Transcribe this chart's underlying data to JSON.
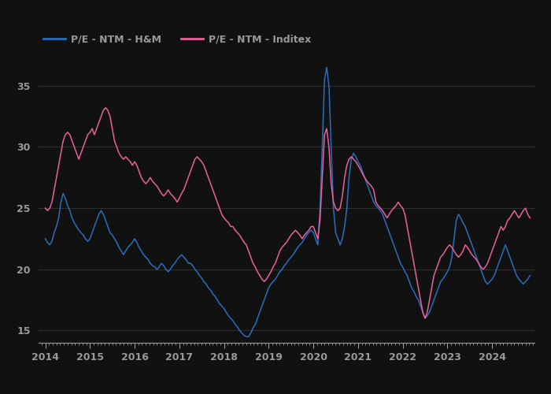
{
  "hm_color": "#2a6ebb",
  "inditex_color": "#e8619a",
  "background_color": "#111111",
  "plot_bg_color": "#111111",
  "text_color": "#999999",
  "grid_color": "#2e2e2e",
  "ylim": [
    14.0,
    37.5
  ],
  "yticks": [
    15,
    20,
    25,
    30,
    35
  ],
  "xlim": [
    2013.85,
    2024.95
  ],
  "xtick_years": [
    2014,
    2015,
    2016,
    2017,
    2018,
    2019,
    2020,
    2021,
    2022,
    2023,
    2024
  ],
  "legend_labels": [
    "P/E - NTM - H&M",
    "P/E - NTM - Inditex"
  ],
  "hm_data": [
    [
      2014.0,
      22.5
    ],
    [
      2014.05,
      22.2
    ],
    [
      2014.1,
      22.0
    ],
    [
      2014.15,
      22.3
    ],
    [
      2014.2,
      23.0
    ],
    [
      2014.25,
      23.5
    ],
    [
      2014.3,
      24.2
    ],
    [
      2014.35,
      25.5
    ],
    [
      2014.4,
      26.2
    ],
    [
      2014.45,
      25.8
    ],
    [
      2014.5,
      25.2
    ],
    [
      2014.55,
      24.8
    ],
    [
      2014.6,
      24.2
    ],
    [
      2014.65,
      23.8
    ],
    [
      2014.7,
      23.5
    ],
    [
      2014.75,
      23.2
    ],
    [
      2014.8,
      23.0
    ],
    [
      2014.85,
      22.8
    ],
    [
      2014.9,
      22.5
    ],
    [
      2014.95,
      22.3
    ],
    [
      2015.0,
      22.5
    ],
    [
      2015.05,
      23.0
    ],
    [
      2015.1,
      23.5
    ],
    [
      2015.15,
      24.0
    ],
    [
      2015.2,
      24.5
    ],
    [
      2015.25,
      24.8
    ],
    [
      2015.3,
      24.5
    ],
    [
      2015.35,
      24.0
    ],
    [
      2015.4,
      23.5
    ],
    [
      2015.45,
      23.0
    ],
    [
      2015.5,
      22.8
    ],
    [
      2015.55,
      22.5
    ],
    [
      2015.6,
      22.2
    ],
    [
      2015.65,
      21.8
    ],
    [
      2015.7,
      21.5
    ],
    [
      2015.75,
      21.2
    ],
    [
      2015.8,
      21.5
    ],
    [
      2015.85,
      21.8
    ],
    [
      2015.9,
      22.0
    ],
    [
      2015.95,
      22.2
    ],
    [
      2016.0,
      22.5
    ],
    [
      2016.05,
      22.2
    ],
    [
      2016.1,
      21.8
    ],
    [
      2016.15,
      21.5
    ],
    [
      2016.2,
      21.2
    ],
    [
      2016.25,
      21.0
    ],
    [
      2016.3,
      20.8
    ],
    [
      2016.35,
      20.5
    ],
    [
      2016.4,
      20.3
    ],
    [
      2016.45,
      20.2
    ],
    [
      2016.5,
      20.0
    ],
    [
      2016.55,
      20.2
    ],
    [
      2016.6,
      20.5
    ],
    [
      2016.65,
      20.3
    ],
    [
      2016.7,
      20.0
    ],
    [
      2016.75,
      19.8
    ],
    [
      2016.8,
      20.0
    ],
    [
      2016.85,
      20.3
    ],
    [
      2016.9,
      20.5
    ],
    [
      2016.95,
      20.8
    ],
    [
      2017.0,
      21.0
    ],
    [
      2017.05,
      21.2
    ],
    [
      2017.1,
      21.0
    ],
    [
      2017.15,
      20.8
    ],
    [
      2017.2,
      20.5
    ],
    [
      2017.25,
      20.5
    ],
    [
      2017.3,
      20.3
    ],
    [
      2017.35,
      20.0
    ],
    [
      2017.4,
      19.8
    ],
    [
      2017.45,
      19.5
    ],
    [
      2017.5,
      19.3
    ],
    [
      2017.55,
      19.0
    ],
    [
      2017.6,
      18.8
    ],
    [
      2017.65,
      18.5
    ],
    [
      2017.7,
      18.3
    ],
    [
      2017.75,
      18.0
    ],
    [
      2017.8,
      17.8
    ],
    [
      2017.85,
      17.5
    ],
    [
      2017.9,
      17.2
    ],
    [
      2017.95,
      17.0
    ],
    [
      2018.0,
      16.8
    ],
    [
      2018.05,
      16.5
    ],
    [
      2018.1,
      16.2
    ],
    [
      2018.15,
      16.0
    ],
    [
      2018.2,
      15.8
    ],
    [
      2018.25,
      15.5
    ],
    [
      2018.3,
      15.3
    ],
    [
      2018.35,
      15.0
    ],
    [
      2018.4,
      14.8
    ],
    [
      2018.45,
      14.6
    ],
    [
      2018.5,
      14.5
    ],
    [
      2018.55,
      14.5
    ],
    [
      2018.6,
      14.8
    ],
    [
      2018.65,
      15.2
    ],
    [
      2018.7,
      15.5
    ],
    [
      2018.75,
      16.0
    ],
    [
      2018.8,
      16.5
    ],
    [
      2018.85,
      17.0
    ],
    [
      2018.9,
      17.5
    ],
    [
      2018.95,
      18.0
    ],
    [
      2019.0,
      18.5
    ],
    [
      2019.05,
      18.8
    ],
    [
      2019.1,
      19.0
    ],
    [
      2019.15,
      19.2
    ],
    [
      2019.2,
      19.5
    ],
    [
      2019.25,
      19.8
    ],
    [
      2019.3,
      20.0
    ],
    [
      2019.35,
      20.3
    ],
    [
      2019.4,
      20.5
    ],
    [
      2019.45,
      20.8
    ],
    [
      2019.5,
      21.0
    ],
    [
      2019.55,
      21.2
    ],
    [
      2019.6,
      21.5
    ],
    [
      2019.65,
      21.8
    ],
    [
      2019.7,
      22.0
    ],
    [
      2019.75,
      22.2
    ],
    [
      2019.8,
      22.5
    ],
    [
      2019.85,
      22.8
    ],
    [
      2019.9,
      23.0
    ],
    [
      2019.95,
      23.2
    ],
    [
      2020.0,
      23.0
    ],
    [
      2020.05,
      22.5
    ],
    [
      2020.1,
      22.0
    ],
    [
      2020.15,
      25.0
    ],
    [
      2020.2,
      30.0
    ],
    [
      2020.25,
      35.5
    ],
    [
      2020.3,
      36.5
    ],
    [
      2020.35,
      35.0
    ],
    [
      2020.4,
      30.0
    ],
    [
      2020.45,
      25.0
    ],
    [
      2020.5,
      23.0
    ],
    [
      2020.55,
      22.5
    ],
    [
      2020.6,
      22.0
    ],
    [
      2020.65,
      22.5
    ],
    [
      2020.7,
      23.5
    ],
    [
      2020.75,
      25.0
    ],
    [
      2020.8,
      27.5
    ],
    [
      2020.85,
      29.0
    ],
    [
      2020.9,
      29.5
    ],
    [
      2020.95,
      29.2
    ],
    [
      2021.0,
      28.8
    ],
    [
      2021.05,
      28.5
    ],
    [
      2021.1,
      28.0
    ],
    [
      2021.15,
      27.5
    ],
    [
      2021.2,
      27.0
    ],
    [
      2021.25,
      26.5
    ],
    [
      2021.3,
      26.0
    ],
    [
      2021.35,
      25.5
    ],
    [
      2021.4,
      25.2
    ],
    [
      2021.45,
      25.0
    ],
    [
      2021.5,
      24.8
    ],
    [
      2021.55,
      24.5
    ],
    [
      2021.6,
      24.0
    ],
    [
      2021.65,
      23.5
    ],
    [
      2021.7,
      23.0
    ],
    [
      2021.75,
      22.5
    ],
    [
      2021.8,
      22.0
    ],
    [
      2021.85,
      21.5
    ],
    [
      2021.9,
      21.0
    ],
    [
      2021.95,
      20.5
    ],
    [
      2022.0,
      20.2
    ],
    [
      2022.05,
      19.8
    ],
    [
      2022.1,
      19.5
    ],
    [
      2022.15,
      19.0
    ],
    [
      2022.2,
      18.5
    ],
    [
      2022.25,
      18.2
    ],
    [
      2022.3,
      17.8
    ],
    [
      2022.35,
      17.5
    ],
    [
      2022.4,
      17.0
    ],
    [
      2022.45,
      16.5
    ],
    [
      2022.5,
      16.0
    ],
    [
      2022.55,
      16.2
    ],
    [
      2022.6,
      16.5
    ],
    [
      2022.65,
      17.0
    ],
    [
      2022.7,
      17.5
    ],
    [
      2022.75,
      18.0
    ],
    [
      2022.8,
      18.5
    ],
    [
      2022.85,
      19.0
    ],
    [
      2022.9,
      19.2
    ],
    [
      2022.95,
      19.5
    ],
    [
      2023.0,
      19.8
    ],
    [
      2023.05,
      20.2
    ],
    [
      2023.1,
      21.0
    ],
    [
      2023.15,
      22.5
    ],
    [
      2023.2,
      24.0
    ],
    [
      2023.25,
      24.5
    ],
    [
      2023.3,
      24.2
    ],
    [
      2023.35,
      23.8
    ],
    [
      2023.4,
      23.5
    ],
    [
      2023.45,
      23.0
    ],
    [
      2023.5,
      22.5
    ],
    [
      2023.55,
      22.0
    ],
    [
      2023.6,
      21.5
    ],
    [
      2023.65,
      21.0
    ],
    [
      2023.7,
      20.5
    ],
    [
      2023.75,
      20.0
    ],
    [
      2023.8,
      19.5
    ],
    [
      2023.85,
      19.0
    ],
    [
      2023.9,
      18.8
    ],
    [
      2023.95,
      19.0
    ],
    [
      2024.0,
      19.2
    ],
    [
      2024.05,
      19.5
    ],
    [
      2024.1,
      20.0
    ],
    [
      2024.15,
      20.5
    ],
    [
      2024.2,
      21.0
    ],
    [
      2024.25,
      21.5
    ],
    [
      2024.3,
      22.0
    ],
    [
      2024.35,
      21.5
    ],
    [
      2024.4,
      21.0
    ],
    [
      2024.45,
      20.5
    ],
    [
      2024.5,
      20.0
    ],
    [
      2024.55,
      19.5
    ],
    [
      2024.6,
      19.2
    ],
    [
      2024.65,
      19.0
    ],
    [
      2024.7,
      18.8
    ],
    [
      2024.75,
      19.0
    ],
    [
      2024.8,
      19.2
    ],
    [
      2024.85,
      19.5
    ]
  ],
  "inditex_data": [
    [
      2014.0,
      25.0
    ],
    [
      2014.05,
      24.8
    ],
    [
      2014.1,
      25.0
    ],
    [
      2014.15,
      25.5
    ],
    [
      2014.2,
      26.5
    ],
    [
      2014.25,
      27.5
    ],
    [
      2014.3,
      28.5
    ],
    [
      2014.35,
      29.5
    ],
    [
      2014.4,
      30.5
    ],
    [
      2014.45,
      31.0
    ],
    [
      2014.5,
      31.2
    ],
    [
      2014.55,
      31.0
    ],
    [
      2014.6,
      30.5
    ],
    [
      2014.65,
      30.0
    ],
    [
      2014.7,
      29.5
    ],
    [
      2014.75,
      29.0
    ],
    [
      2014.8,
      29.5
    ],
    [
      2014.85,
      30.0
    ],
    [
      2014.9,
      30.5
    ],
    [
      2014.95,
      31.0
    ],
    [
      2015.0,
      31.2
    ],
    [
      2015.05,
      31.5
    ],
    [
      2015.1,
      31.0
    ],
    [
      2015.15,
      31.5
    ],
    [
      2015.2,
      32.0
    ],
    [
      2015.25,
      32.5
    ],
    [
      2015.3,
      33.0
    ],
    [
      2015.35,
      33.2
    ],
    [
      2015.4,
      33.0
    ],
    [
      2015.45,
      32.5
    ],
    [
      2015.5,
      31.5
    ],
    [
      2015.55,
      30.5
    ],
    [
      2015.6,
      30.0
    ],
    [
      2015.65,
      29.5
    ],
    [
      2015.7,
      29.2
    ],
    [
      2015.75,
      29.0
    ],
    [
      2015.8,
      29.2
    ],
    [
      2015.85,
      29.0
    ],
    [
      2015.9,
      28.8
    ],
    [
      2015.95,
      28.5
    ],
    [
      2016.0,
      28.8
    ],
    [
      2016.05,
      28.5
    ],
    [
      2016.1,
      28.0
    ],
    [
      2016.15,
      27.5
    ],
    [
      2016.2,
      27.2
    ],
    [
      2016.25,
      27.0
    ],
    [
      2016.3,
      27.2
    ],
    [
      2016.35,
      27.5
    ],
    [
      2016.4,
      27.2
    ],
    [
      2016.45,
      27.0
    ],
    [
      2016.5,
      26.8
    ],
    [
      2016.55,
      26.5
    ],
    [
      2016.6,
      26.2
    ],
    [
      2016.65,
      26.0
    ],
    [
      2016.7,
      26.2
    ],
    [
      2016.75,
      26.5
    ],
    [
      2016.8,
      26.2
    ],
    [
      2016.85,
      26.0
    ],
    [
      2016.9,
      25.8
    ],
    [
      2016.95,
      25.5
    ],
    [
      2017.0,
      25.8
    ],
    [
      2017.05,
      26.2
    ],
    [
      2017.1,
      26.5
    ],
    [
      2017.15,
      27.0
    ],
    [
      2017.2,
      27.5
    ],
    [
      2017.25,
      28.0
    ],
    [
      2017.3,
      28.5
    ],
    [
      2017.35,
      29.0
    ],
    [
      2017.4,
      29.2
    ],
    [
      2017.45,
      29.0
    ],
    [
      2017.5,
      28.8
    ],
    [
      2017.55,
      28.5
    ],
    [
      2017.6,
      28.0
    ],
    [
      2017.65,
      27.5
    ],
    [
      2017.7,
      27.0
    ],
    [
      2017.75,
      26.5
    ],
    [
      2017.8,
      26.0
    ],
    [
      2017.85,
      25.5
    ],
    [
      2017.9,
      25.0
    ],
    [
      2017.95,
      24.5
    ],
    [
      2018.0,
      24.2
    ],
    [
      2018.05,
      24.0
    ],
    [
      2018.1,
      23.8
    ],
    [
      2018.15,
      23.5
    ],
    [
      2018.2,
      23.5
    ],
    [
      2018.25,
      23.2
    ],
    [
      2018.3,
      23.0
    ],
    [
      2018.35,
      22.8
    ],
    [
      2018.4,
      22.5
    ],
    [
      2018.45,
      22.2
    ],
    [
      2018.5,
      22.0
    ],
    [
      2018.55,
      21.5
    ],
    [
      2018.6,
      21.0
    ],
    [
      2018.65,
      20.5
    ],
    [
      2018.7,
      20.2
    ],
    [
      2018.75,
      19.8
    ],
    [
      2018.8,
      19.5
    ],
    [
      2018.85,
      19.2
    ],
    [
      2018.9,
      19.0
    ],
    [
      2018.95,
      19.2
    ],
    [
      2019.0,
      19.5
    ],
    [
      2019.05,
      19.8
    ],
    [
      2019.1,
      20.2
    ],
    [
      2019.15,
      20.5
    ],
    [
      2019.2,
      21.0
    ],
    [
      2019.25,
      21.5
    ],
    [
      2019.3,
      21.8
    ],
    [
      2019.35,
      22.0
    ],
    [
      2019.4,
      22.2
    ],
    [
      2019.45,
      22.5
    ],
    [
      2019.5,
      22.8
    ],
    [
      2019.55,
      23.0
    ],
    [
      2019.6,
      23.2
    ],
    [
      2019.65,
      23.0
    ],
    [
      2019.7,
      22.8
    ],
    [
      2019.75,
      22.5
    ],
    [
      2019.8,
      22.8
    ],
    [
      2019.85,
      23.0
    ],
    [
      2019.9,
      23.2
    ],
    [
      2019.95,
      23.5
    ],
    [
      2020.0,
      23.5
    ],
    [
      2020.05,
      23.0
    ],
    [
      2020.1,
      22.5
    ],
    [
      2020.15,
      24.0
    ],
    [
      2020.2,
      27.5
    ],
    [
      2020.25,
      31.0
    ],
    [
      2020.3,
      31.5
    ],
    [
      2020.35,
      30.0
    ],
    [
      2020.4,
      27.0
    ],
    [
      2020.45,
      25.5
    ],
    [
      2020.5,
      25.0
    ],
    [
      2020.55,
      24.8
    ],
    [
      2020.6,
      25.0
    ],
    [
      2020.65,
      26.0
    ],
    [
      2020.7,
      27.5
    ],
    [
      2020.75,
      28.5
    ],
    [
      2020.8,
      29.0
    ],
    [
      2020.85,
      29.2
    ],
    [
      2020.9,
      29.0
    ],
    [
      2020.95,
      28.8
    ],
    [
      2021.0,
      28.5
    ],
    [
      2021.05,
      28.2
    ],
    [
      2021.1,
      27.8
    ],
    [
      2021.15,
      27.5
    ],
    [
      2021.2,
      27.2
    ],
    [
      2021.25,
      27.0
    ],
    [
      2021.3,
      26.8
    ],
    [
      2021.35,
      26.5
    ],
    [
      2021.4,
      25.5
    ],
    [
      2021.45,
      25.2
    ],
    [
      2021.5,
      25.0
    ],
    [
      2021.55,
      24.8
    ],
    [
      2021.6,
      24.5
    ],
    [
      2021.65,
      24.2
    ],
    [
      2021.7,
      24.5
    ],
    [
      2021.75,
      24.8
    ],
    [
      2021.8,
      25.0
    ],
    [
      2021.85,
      25.2
    ],
    [
      2021.9,
      25.5
    ],
    [
      2021.95,
      25.2
    ],
    [
      2022.0,
      25.0
    ],
    [
      2022.05,
      24.5
    ],
    [
      2022.1,
      23.5
    ],
    [
      2022.15,
      22.5
    ],
    [
      2022.2,
      21.5
    ],
    [
      2022.25,
      20.5
    ],
    [
      2022.3,
      19.5
    ],
    [
      2022.35,
      18.5
    ],
    [
      2022.4,
      17.5
    ],
    [
      2022.45,
      16.5
    ],
    [
      2022.5,
      16.0
    ],
    [
      2022.55,
      16.5
    ],
    [
      2022.6,
      17.5
    ],
    [
      2022.65,
      18.5
    ],
    [
      2022.7,
      19.5
    ],
    [
      2022.75,
      20.0
    ],
    [
      2022.8,
      20.5
    ],
    [
      2022.85,
      21.0
    ],
    [
      2022.9,
      21.2
    ],
    [
      2022.95,
      21.5
    ],
    [
      2023.0,
      21.8
    ],
    [
      2023.05,
      22.0
    ],
    [
      2023.1,
      21.8
    ],
    [
      2023.15,
      21.5
    ],
    [
      2023.2,
      21.2
    ],
    [
      2023.25,
      21.0
    ],
    [
      2023.3,
      21.2
    ],
    [
      2023.35,
      21.5
    ],
    [
      2023.4,
      22.0
    ],
    [
      2023.45,
      21.8
    ],
    [
      2023.5,
      21.5
    ],
    [
      2023.55,
      21.2
    ],
    [
      2023.6,
      21.0
    ],
    [
      2023.65,
      20.8
    ],
    [
      2023.7,
      20.5
    ],
    [
      2023.75,
      20.2
    ],
    [
      2023.8,
      20.0
    ],
    [
      2023.85,
      20.2
    ],
    [
      2023.9,
      20.5
    ],
    [
      2023.95,
      21.0
    ],
    [
      2024.0,
      21.5
    ],
    [
      2024.05,
      22.0
    ],
    [
      2024.1,
      22.5
    ],
    [
      2024.15,
      23.0
    ],
    [
      2024.2,
      23.5
    ],
    [
      2024.25,
      23.2
    ],
    [
      2024.3,
      23.5
    ],
    [
      2024.35,
      24.0
    ],
    [
      2024.4,
      24.2
    ],
    [
      2024.45,
      24.5
    ],
    [
      2024.5,
      24.8
    ],
    [
      2024.55,
      24.5
    ],
    [
      2024.6,
      24.2
    ],
    [
      2024.65,
      24.5
    ],
    [
      2024.7,
      24.8
    ],
    [
      2024.75,
      25.0
    ],
    [
      2024.8,
      24.5
    ],
    [
      2024.85,
      24.2
    ]
  ]
}
